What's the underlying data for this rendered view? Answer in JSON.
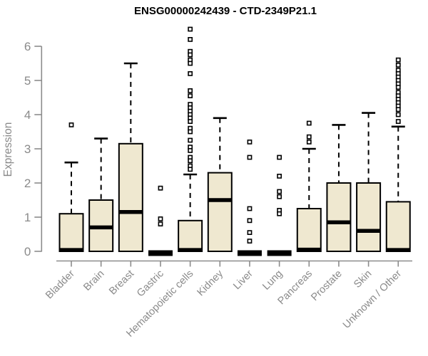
{
  "title": "ENSG00000242439 - CTD-2349P21.1",
  "chart_data": {
    "type": "boxplot",
    "title": "ENSG00000242439 - CTD-2349P21.1",
    "xlabel": "",
    "ylabel": "Expression",
    "ylim": [
      0,
      6
    ],
    "yticks": [
      0,
      1,
      2,
      3,
      4,
      5,
      6
    ],
    "grid": false,
    "legend": "none",
    "categories": [
      "Bladder",
      "Brain",
      "Breast",
      "Gastric",
      "Hematopoietic cells",
      "Kidney",
      "Liver",
      "Lung",
      "Pancreas",
      "Prostate",
      "Skin",
      "Unknown / Other"
    ],
    "series": [
      {
        "name": "Bladder",
        "low": 0,
        "q1": 0,
        "median": 0.04,
        "q3": 1.1,
        "high": 2.6,
        "outliers": [
          3.7
        ]
      },
      {
        "name": "Brain",
        "low": 0,
        "q1": 0,
        "median": 0.7,
        "q3": 1.5,
        "high": 3.3,
        "outliers": []
      },
      {
        "name": "Breast",
        "low": 0,
        "q1": 0,
        "median": 1.15,
        "q3": 3.15,
        "high": 5.5,
        "outliers": []
      },
      {
        "name": "Gastric",
        "low": 0,
        "q1": 0,
        "median": 0,
        "q3": 0,
        "high": 0,
        "outliers": [
          1.85,
          0.95,
          0.8
        ]
      },
      {
        "name": "Hematopoietic cells",
        "low": 0,
        "q1": 0,
        "median": 0.04,
        "q3": 0.9,
        "high": 2.25,
        "outliers": [
          6.5,
          6.2,
          5.85,
          5.75,
          5.6,
          5.5,
          5.2,
          4.7,
          4.55,
          4.3,
          4.2,
          4.1,
          4.0,
          3.9,
          3.8,
          3.6,
          3.5,
          3.25,
          3.05,
          2.95,
          2.75,
          2.65,
          2.5,
          2.4
        ]
      },
      {
        "name": "Kidney",
        "low": 0,
        "q1": 0,
        "median": 1.5,
        "q3": 2.3,
        "high": 3.9,
        "outliers": []
      },
      {
        "name": "Liver",
        "low": 0,
        "q1": 0,
        "median": 0,
        "q3": 0,
        "high": 0,
        "outliers": [
          3.2,
          2.75,
          1.25,
          0.9,
          0.55,
          0.3
        ]
      },
      {
        "name": "Lung",
        "low": 0,
        "q1": 0,
        "median": 0,
        "q3": 0,
        "high": 0,
        "outliers": [
          2.75,
          2.2,
          1.75,
          1.6,
          1.2,
          1.1
        ]
      },
      {
        "name": "Pancreas",
        "low": 0,
        "q1": 0,
        "median": 0.05,
        "q3": 1.25,
        "high": 3.0,
        "outliers": [
          3.75,
          3.35,
          3.2
        ]
      },
      {
        "name": "Prostate",
        "low": 0,
        "q1": 0,
        "median": 0.85,
        "q3": 2.0,
        "high": 3.7,
        "outliers": []
      },
      {
        "name": "Skin",
        "low": 0,
        "q1": 0,
        "median": 0.6,
        "q3": 2.0,
        "high": 4.05,
        "outliers": []
      },
      {
        "name": "Unknown / Other",
        "low": 0,
        "q1": 0,
        "median": 0.04,
        "q3": 1.45,
        "high": 3.65,
        "outliers": [
          5.6,
          5.45,
          5.3,
          5.2,
          5.1,
          5.0,
          4.9,
          4.8,
          4.65,
          4.55,
          4.45,
          4.35,
          4.25,
          4.15,
          4.0,
          3.8
        ]
      }
    ],
    "colors": {
      "box_fill": "#EFE8D0",
      "box_stroke": "#000000",
      "median": "#000000",
      "axis": "#8C8C8C",
      "axis_text": "#8A8A8A",
      "title_text": "#000000",
      "background": "#FFFFFF"
    }
  }
}
